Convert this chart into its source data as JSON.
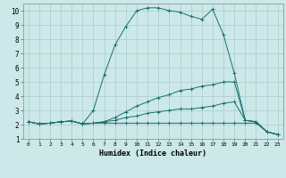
{
  "xlabel": "Humidex (Indice chaleur)",
  "xlim": [
    -0.5,
    23.5
  ],
  "ylim": [
    1,
    10.5
  ],
  "xticks": [
    0,
    1,
    2,
    3,
    4,
    5,
    6,
    7,
    8,
    9,
    10,
    11,
    12,
    13,
    14,
    15,
    16,
    17,
    18,
    19,
    20,
    21,
    22,
    23
  ],
  "yticks": [
    1,
    2,
    3,
    4,
    5,
    6,
    7,
    8,
    9,
    10
  ],
  "bg_color": "#cce8e8",
  "line_color": "#1a7070",
  "grid_color": "#aacccc",
  "lines": [
    {
      "x": [
        0,
        1,
        2,
        3,
        4,
        5,
        6,
        7,
        8,
        9,
        10,
        11,
        12,
        13,
        14,
        15,
        16,
        17,
        18,
        19,
        20,
        21,
        22,
        23
      ],
      "y": [
        2.2,
        2.05,
        2.1,
        2.2,
        2.25,
        2.05,
        3.0,
        5.5,
        7.6,
        8.9,
        10.0,
        10.2,
        10.2,
        10.0,
        9.9,
        9.6,
        9.4,
        10.1,
        8.3,
        5.6,
        2.3,
        2.2,
        1.5,
        1.3
      ],
      "marker": "+"
    },
    {
      "x": [
        0,
        1,
        2,
        3,
        4,
        5,
        6,
        7,
        8,
        9,
        10,
        11,
        12,
        13,
        14,
        15,
        16,
        17,
        18,
        19,
        20,
        21,
        22,
        23
      ],
      "y": [
        2.2,
        2.05,
        2.1,
        2.2,
        2.25,
        2.05,
        2.1,
        2.2,
        2.5,
        2.9,
        3.3,
        3.6,
        3.9,
        4.1,
        4.4,
        4.5,
        4.7,
        4.8,
        5.0,
        5.0,
        2.3,
        2.2,
        1.5,
        1.3
      ],
      "marker": "+"
    },
    {
      "x": [
        0,
        1,
        2,
        3,
        4,
        5,
        6,
        7,
        8,
        9,
        10,
        11,
        12,
        13,
        14,
        15,
        16,
        17,
        18,
        19,
        20,
        21,
        22,
        23
      ],
      "y": [
        2.2,
        2.05,
        2.1,
        2.2,
        2.25,
        2.05,
        2.1,
        2.2,
        2.3,
        2.5,
        2.6,
        2.8,
        2.9,
        3.0,
        3.1,
        3.1,
        3.2,
        3.3,
        3.5,
        3.6,
        2.3,
        2.2,
        1.5,
        1.3
      ],
      "marker": "+"
    },
    {
      "x": [
        0,
        1,
        2,
        3,
        4,
        5,
        6,
        7,
        8,
        9,
        10,
        11,
        12,
        13,
        14,
        15,
        16,
        17,
        18,
        19,
        20,
        21,
        22,
        23
      ],
      "y": [
        2.2,
        2.05,
        2.1,
        2.2,
        2.25,
        2.05,
        2.1,
        2.1,
        2.1,
        2.1,
        2.1,
        2.1,
        2.1,
        2.1,
        2.1,
        2.1,
        2.1,
        2.1,
        2.1,
        2.1,
        2.1,
        2.1,
        1.5,
        1.3
      ],
      "marker": "+"
    }
  ]
}
